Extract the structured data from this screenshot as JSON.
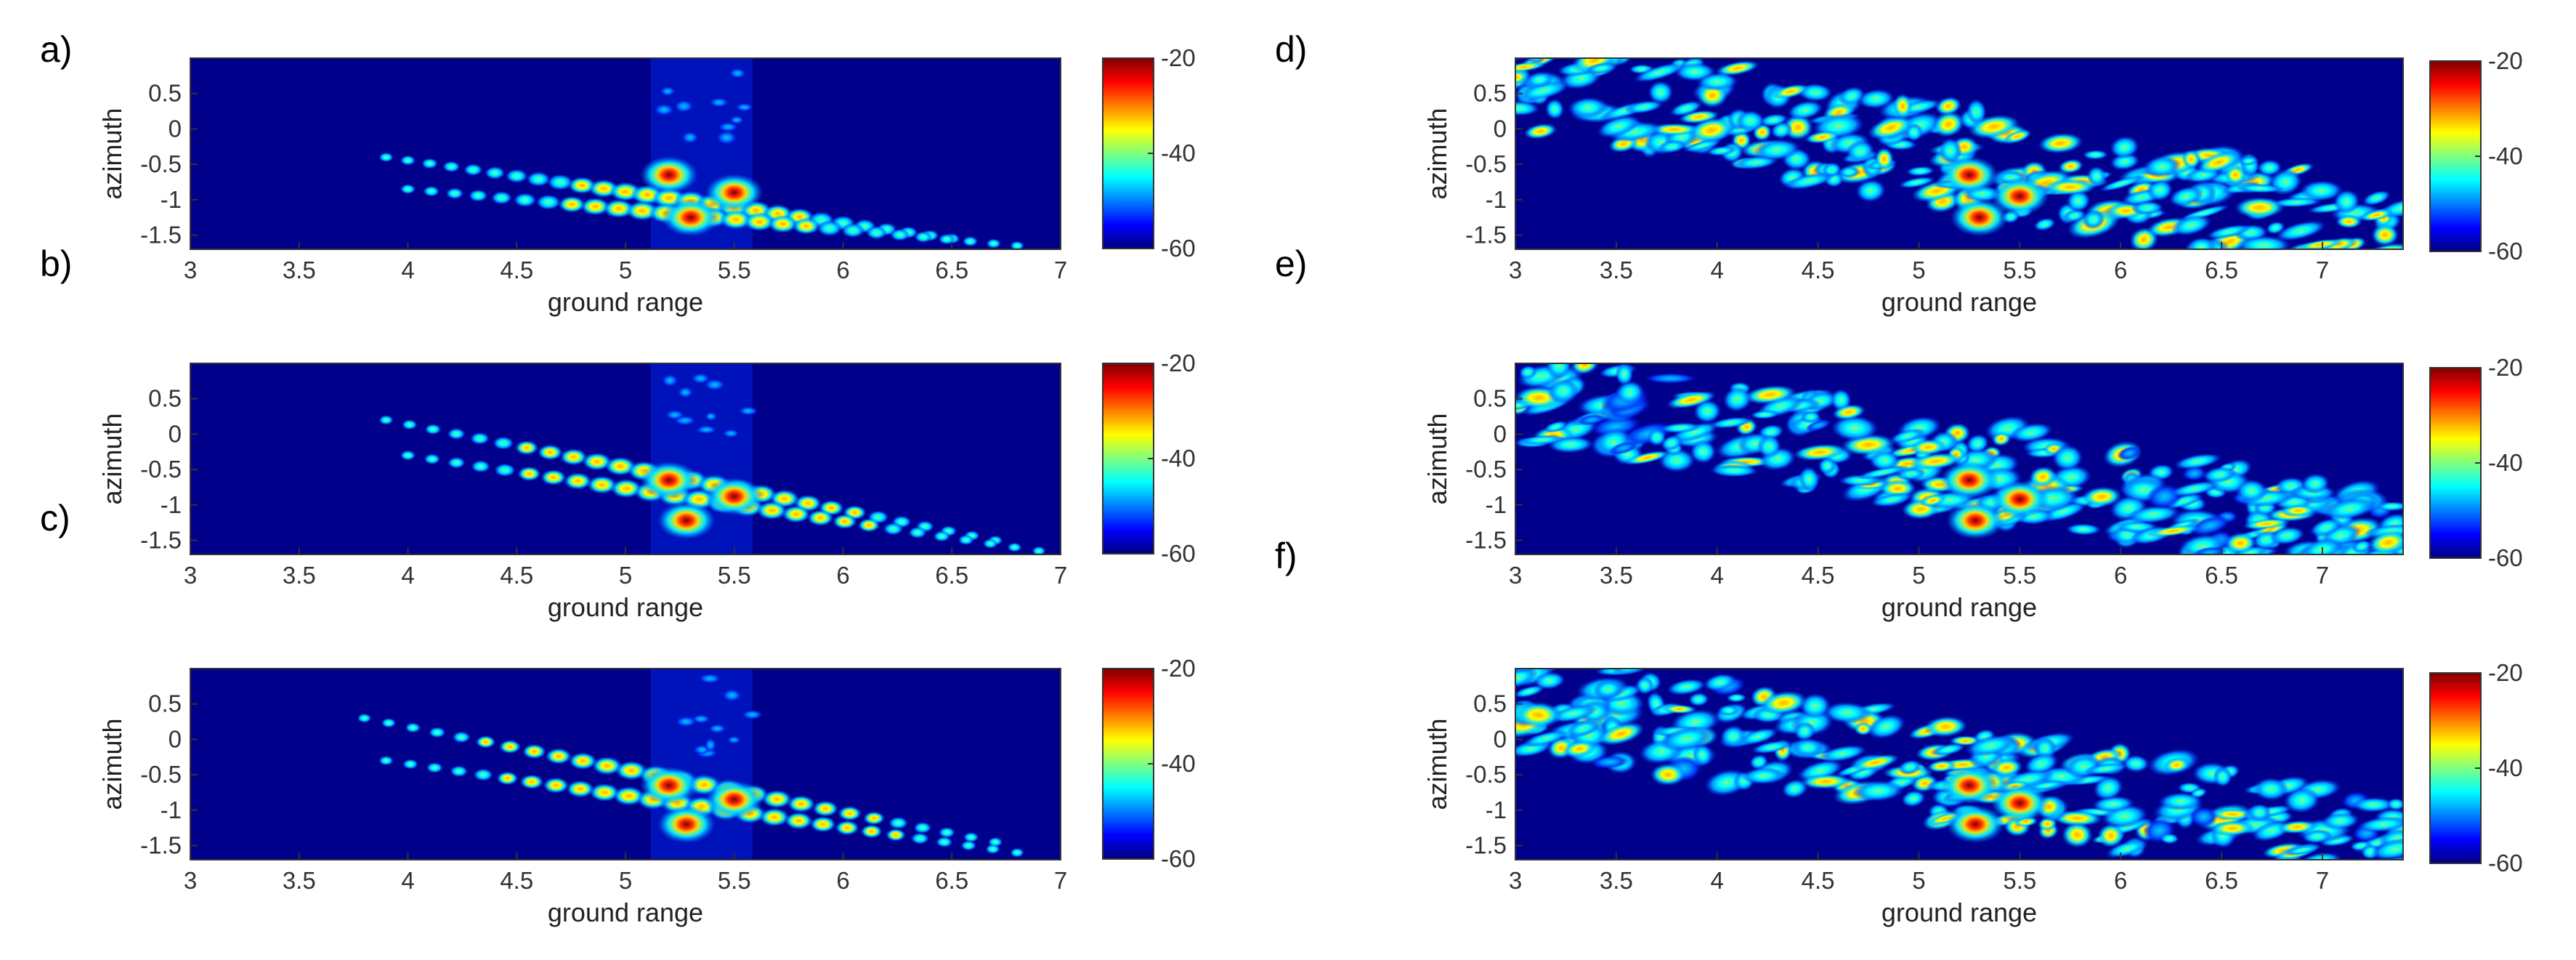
{
  "colormap": {
    "name": "jet",
    "stops": [
      "#00007f",
      "#0000ff",
      "#007fff",
      "#00ffff",
      "#7fff7f",
      "#ffff00",
      "#ff7f00",
      "#ff0000",
      "#7f0000"
    ],
    "background": "#00008a"
  },
  "chart_data": [
    {
      "label": "a)",
      "type": "heatmap",
      "xlabel": "ground range",
      "ylabel": "azimuth",
      "xlim": [
        3,
        7
      ],
      "ylim": [
        -1.7,
        1.0
      ],
      "xticks": [
        "3",
        "3.5",
        "4",
        "4.5",
        "5",
        "5.5",
        "6",
        "6.5",
        "7"
      ],
      "yticks": [
        "0.5",
        "0",
        "-0.5",
        "-1",
        "-1.5"
      ],
      "colorbar": {
        "min": -60,
        "max": -20,
        "ticks": [
          "-20",
          "-40",
          "-60"
        ]
      },
      "peaks": [
        {
          "x": 5.2,
          "y": -0.65,
          "value": -20
        },
        {
          "x": 5.5,
          "y": -0.9,
          "value": -20
        },
        {
          "x": 5.3,
          "y": -1.25,
          "value": -20
        }
      ],
      "sidelobe_trails": [
        {
          "from": [
            3.9,
            -0.4
          ],
          "to": [
            6.5,
            -1.55
          ],
          "level": -48
        },
        {
          "from": [
            4.0,
            -0.85
          ],
          "to": [
            6.8,
            -1.65
          ],
          "level": -48
        }
      ]
    },
    {
      "label": "b)",
      "type": "heatmap",
      "xlabel": "ground range",
      "ylabel": "azimuth",
      "xlim": [
        3,
        7
      ],
      "ylim": [
        -1.7,
        1.0
      ],
      "xticks": [
        "3",
        "3.5",
        "4",
        "4.5",
        "5",
        "5.5",
        "6",
        "6.5",
        "7"
      ],
      "yticks": [
        "0.5",
        "0",
        "-0.5",
        "-1",
        "-1.5"
      ],
      "colorbar": {
        "min": -60,
        "max": -20,
        "ticks": [
          "-20",
          "-40",
          "-60"
        ]
      },
      "peaks": [
        {
          "x": 5.2,
          "y": -0.65,
          "value": -21
        },
        {
          "x": 5.5,
          "y": -0.88,
          "value": -22
        },
        {
          "x": 5.28,
          "y": -1.22,
          "value": -22
        }
      ],
      "sidelobe_trails": [
        {
          "from": [
            3.9,
            0.2
          ],
          "to": [
            6.7,
            -1.5
          ],
          "level": -45
        },
        {
          "from": [
            4.0,
            -0.3
          ],
          "to": [
            6.9,
            -1.65
          ],
          "level": -45
        }
      ]
    },
    {
      "label": "c)",
      "type": "heatmap",
      "xlabel": "ground range",
      "ylabel": "azimuth",
      "xlim": [
        3,
        7
      ],
      "ylim": [
        -1.7,
        1.0
      ],
      "xticks": [
        "3",
        "3.5",
        "4",
        "4.5",
        "5",
        "5.5",
        "6",
        "6.5",
        "7"
      ],
      "yticks": [
        "0.5",
        "0",
        "-0.5",
        "-1",
        "-1.5"
      ],
      "colorbar": {
        "min": -60,
        "max": -20,
        "ticks": [
          "-20",
          "-40",
          "-60"
        ]
      },
      "peaks": [
        {
          "x": 5.2,
          "y": -0.65,
          "value": -23
        },
        {
          "x": 5.5,
          "y": -0.85,
          "value": -26
        },
        {
          "x": 5.28,
          "y": -1.2,
          "value": -24
        }
      ],
      "sidelobe_trails": [
        {
          "from": [
            3.8,
            0.3
          ],
          "to": [
            6.7,
            -1.45
          ],
          "level": -44
        },
        {
          "from": [
            3.9,
            -0.3
          ],
          "to": [
            6.8,
            -1.6
          ],
          "level": -44
        }
      ]
    },
    {
      "label": "d)",
      "type": "heatmap",
      "xlabel": "ground range",
      "ylabel": "azimuth",
      "xlim": [
        3,
        7.4
      ],
      "ylim": [
        -1.7,
        1.0
      ],
      "xticks": [
        "3",
        "3.5",
        "4",
        "4.5",
        "5",
        "5.5",
        "6",
        "6.5",
        "7"
      ],
      "yticks": [
        "0.5",
        "0",
        "-0.5",
        "-1",
        "-1.5"
      ],
      "colorbar": {
        "min": -60,
        "max": -20,
        "ticks": [
          "-20",
          "-40",
          "-60"
        ]
      },
      "peaks": [
        {
          "x": 5.25,
          "y": -0.65,
          "value": -21
        },
        {
          "x": 5.5,
          "y": -0.95,
          "value": -20
        },
        {
          "x": 5.3,
          "y": -1.25,
          "value": -23
        }
      ],
      "speckle_band": {
        "from": [
          3.0,
          0.7
        ],
        "to": [
          7.4,
          -1.55
        ],
        "width": 0.9,
        "level": -44
      }
    },
    {
      "label": "e)",
      "type": "heatmap",
      "xlabel": "ground range",
      "ylabel": "azimuth",
      "xlim": [
        3,
        7.4
      ],
      "ylim": [
        -1.7,
        1.0
      ],
      "xticks": [
        "3",
        "3.5",
        "4",
        "4.5",
        "5",
        "5.5",
        "6",
        "6.5",
        "7"
      ],
      "yticks": [
        "0.5",
        "0",
        "-0.5",
        "-1",
        "-1.5"
      ],
      "colorbar": {
        "min": -60,
        "max": -20,
        "ticks": [
          "-20",
          "-40",
          "-60"
        ]
      },
      "peaks": [
        {
          "x": 5.25,
          "y": -0.65,
          "value": -24
        },
        {
          "x": 5.5,
          "y": -0.92,
          "value": -24
        },
        {
          "x": 5.28,
          "y": -1.22,
          "value": -26
        }
      ],
      "speckle_band": {
        "from": [
          3.0,
          0.6
        ],
        "to": [
          7.4,
          -1.55
        ],
        "width": 0.85,
        "level": -46
      }
    },
    {
      "label": "f)",
      "type": "heatmap",
      "xlabel": "ground range",
      "ylabel": "azimuth",
      "xlim": [
        3,
        7.4
      ],
      "ylim": [
        -1.7,
        1.0
      ],
      "xticks": [
        "3",
        "3.5",
        "4",
        "4.5",
        "5",
        "5.5",
        "6",
        "6.5",
        "7"
      ],
      "yticks": [
        "0.5",
        "0",
        "-0.5",
        "-1",
        "-1.5"
      ],
      "colorbar": {
        "min": -60,
        "max": -20,
        "ticks": [
          "-20",
          "-40",
          "-60"
        ]
      },
      "peaks": [
        {
          "x": 5.25,
          "y": -0.65,
          "value": -24
        },
        {
          "x": 5.5,
          "y": -0.9,
          "value": -25
        },
        {
          "x": 5.28,
          "y": -1.2,
          "value": -25
        }
      ],
      "speckle_band": {
        "from": [
          3.0,
          0.6
        ],
        "to": [
          7.4,
          -1.6
        ],
        "width": 0.9,
        "level": -45
      }
    }
  ]
}
